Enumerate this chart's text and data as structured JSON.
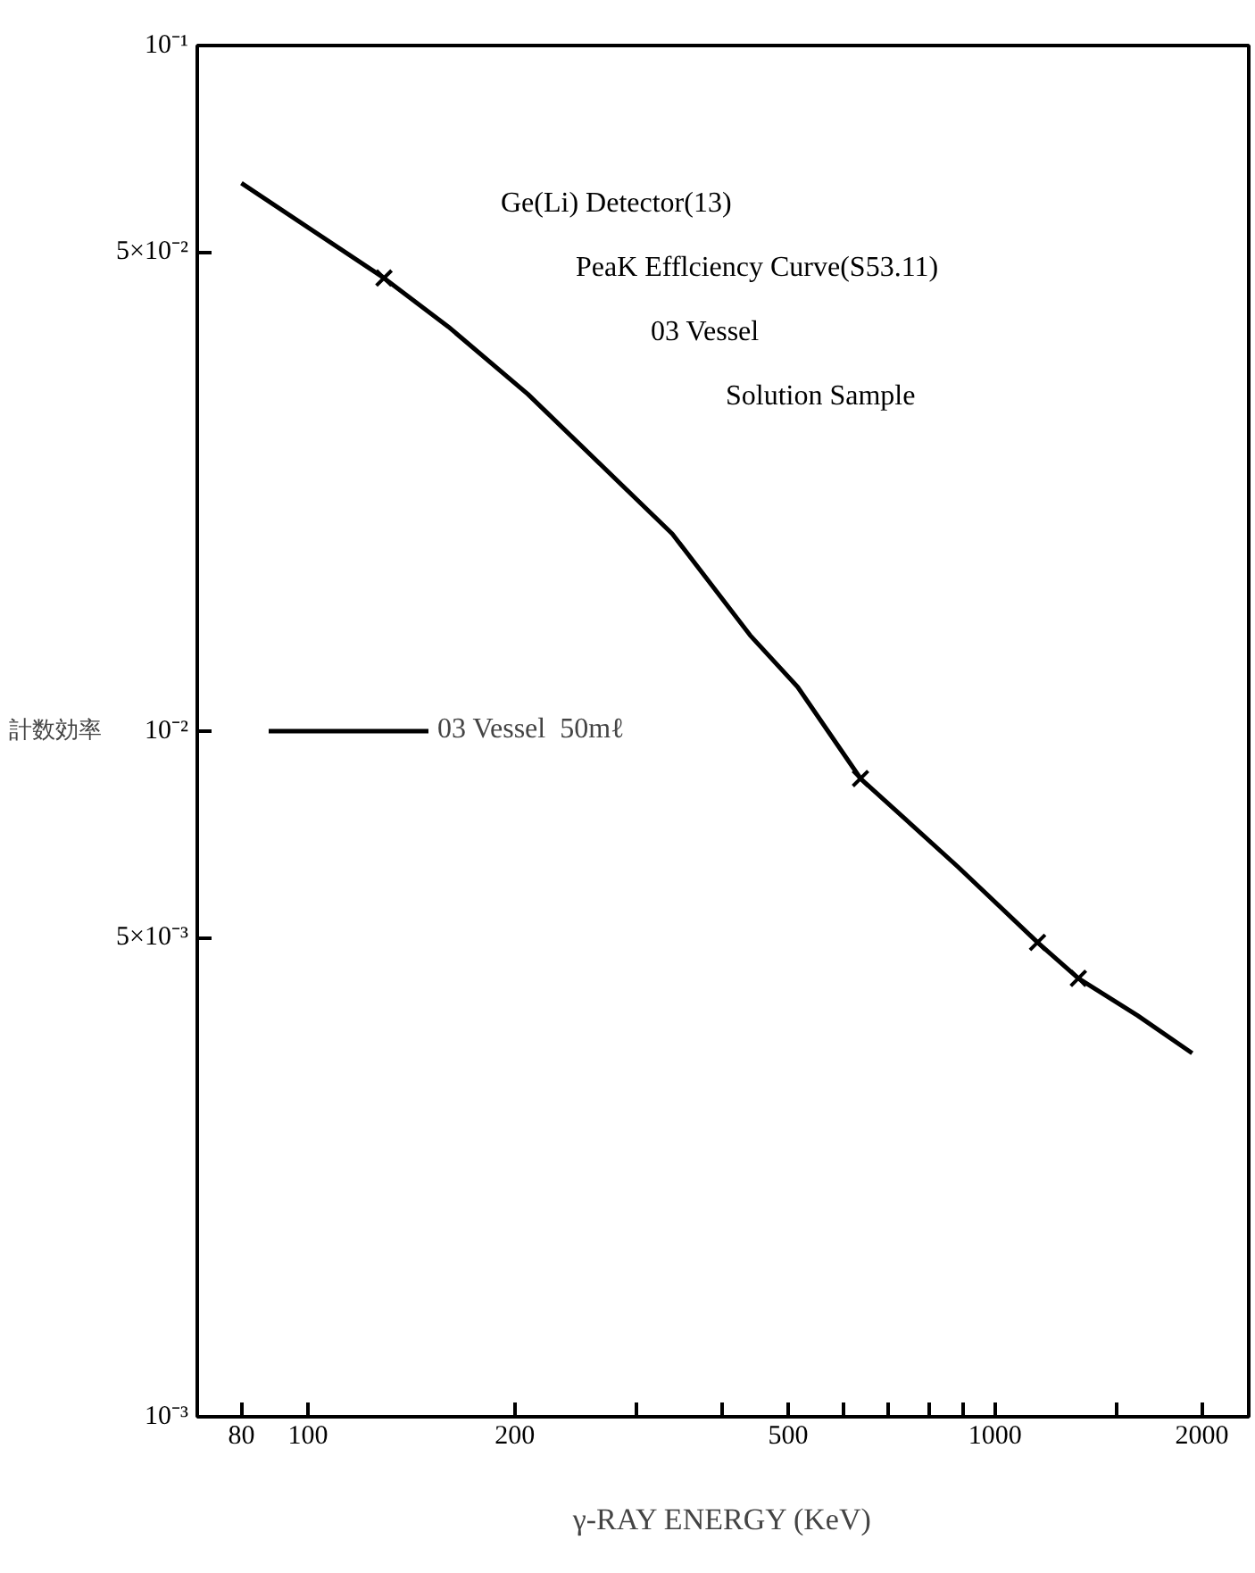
{
  "chart_data": {
    "type": "line",
    "xlabel": "γ-RAY ENERGY (KeV)",
    "ylabel": "計数効率",
    "annotations": [
      "Ge(Li) Detector(13)",
      "PeaK Efflciency Curve(S53.11)",
      "03 Vessel",
      "Solution Sample"
    ],
    "log": "xy",
    "grid": false,
    "legend": "left",
    "line_style": "solid",
    "xlim": [
      69,
      2340
    ],
    "ylim": [
      0.001,
      0.1
    ],
    "xticks": [
      80,
      100,
      200,
      {
        "value": 300,
        "label": null
      },
      {
        "value": 400,
        "label": null
      },
      500,
      {
        "value": 600,
        "label": null
      },
      {
        "value": 700,
        "label": null
      },
      {
        "value": 800,
        "label": null
      },
      {
        "value": 900,
        "label": null
      },
      1000,
      {
        "value": 1500,
        "label": null
      },
      2000
    ],
    "yticks": [
      {
        "value": 0.001,
        "label": "10⁻³"
      },
      {
        "value": 0.005,
        "label": "5×10⁻³"
      },
      {
        "value": 0.01,
        "label": "10⁻²"
      },
      {
        "value": 0.05,
        "label": "5×10⁻²"
      },
      {
        "value": 0.1,
        "label": "10⁻¹"
      }
    ],
    "series": [
      {
        "name": "03 Vessel  50mℓ",
        "color": "#000000",
        "x": [
          80,
          129,
          160,
          209,
          339,
          440,
          516,
          637,
          883,
          1153,
          1322,
          1611,
          1936
        ],
        "values": [
          0.063,
          0.0458,
          0.0389,
          0.031,
          0.0194,
          0.0138,
          0.0116,
          0.00853,
          0.00634,
          0.00492,
          0.00436,
          0.00385,
          0.00339
        ]
      },
      {
        "type": "scatter",
        "marker": "cross",
        "color": "#000000",
        "x": [
          129,
          637,
          1153,
          1322
        ],
        "values": [
          0.0458,
          0.00853,
          0.00492,
          0.00436
        ]
      }
    ]
  }
}
